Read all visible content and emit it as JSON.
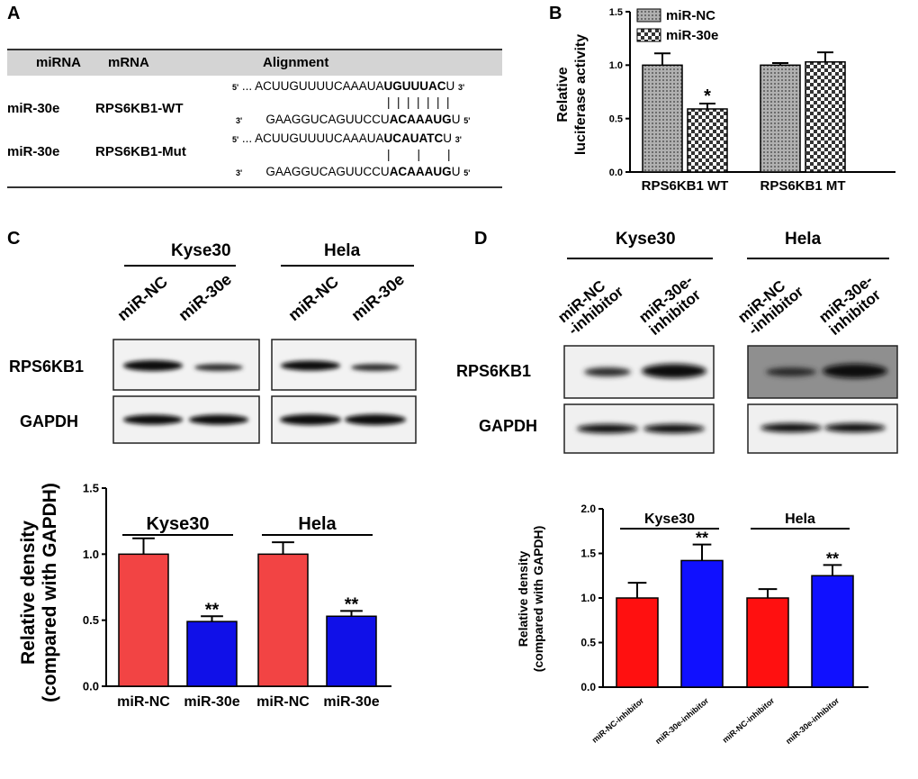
{
  "panel_labels": {
    "a": "A",
    "b": "B",
    "c": "C",
    "d": "D"
  },
  "panel_a": {
    "headers": {
      "mirna": "miRNA",
      "mrna": "mRNA",
      "alignment": "Alignment"
    },
    "rows": [
      {
        "mirna": "miR-30e",
        "mrna": "RPS6KB1-WT",
        "top_prefix": "... ACUUGUUUUCAAAUA",
        "top_bold": "UGUUUAC",
        "top_suffix": "U",
        "pairs": "|  |  |  |  |  |  |",
        "bottom_prefix": "GAAGGUCAGUUCCU",
        "bottom_bold": "ACAAAUG",
        "bottom_suffix": "U"
      },
      {
        "mirna": "miR-30e",
        "mrna": "RPS6KB1-Mut",
        "top_prefix": "... ACUUGUUUUCAAAUA",
        "top_bold": "UCAUATC",
        "top_suffix": "U",
        "pairs": "|        |        |",
        "bottom_prefix": "GAAGGUCAGUUCCU",
        "bottom_bold": "ACAAAUG",
        "bottom_suffix": "U"
      }
    ],
    "end5": "5'",
    "end3": "3'"
  },
  "panel_c_blot": {
    "groups": [
      "Kyse30",
      "Hela"
    ],
    "lanes": [
      "miR-NC",
      "miR-30e",
      "miR-NC",
      "miR-30e"
    ],
    "rows": [
      "RPS6KB1",
      "GAPDH"
    ]
  },
  "panel_d_blot": {
    "groups": [
      "Kyse30",
      "Hela"
    ],
    "lanes": [
      "miR-NC\n-inhibitor",
      "miR-30e-\ninhibitor",
      "miR-NC\n-inhibitor",
      "miR-30e-\ninhibitor"
    ],
    "rows": [
      "RPS6KB1",
      "GAPDH"
    ]
  },
  "chart_data": [
    {
      "id": "B",
      "type": "bar",
      "categories": [
        "RPS6KB1 WT",
        "RPS6KB1 MT"
      ],
      "series": [
        {
          "name": "miR-NC",
          "values": [
            1.0,
            1.0
          ],
          "errors": [
            0.11,
            0.02
          ],
          "color": "#9a9a9a"
        },
        {
          "name": "miR-30e",
          "values": [
            0.59,
            1.03
          ],
          "errors": [
            0.05,
            0.09
          ],
          "color": "#cfcfcf"
        }
      ],
      "annotations": [
        {
          "category": "RPS6KB1 WT",
          "series": "miR-30e",
          "text": "*"
        }
      ],
      "ylabel": "Relative\nluciferase activity",
      "ylim": [
        0,
        1.5
      ],
      "yticks": [
        "0.0",
        "0.5",
        "1.0",
        "1.5"
      ],
      "legend": "top-left"
    },
    {
      "id": "C",
      "type": "bar",
      "categories": [
        "miR-NC",
        "miR-30e",
        "miR-NC",
        "miR-30e"
      ],
      "values": [
        1.0,
        0.49,
        1.0,
        0.53
      ],
      "errors": [
        0.12,
        0.04,
        0.09,
        0.04
      ],
      "colors": [
        "#f24444",
        "#1010e8",
        "#f24444",
        "#1010e8"
      ],
      "groups": [
        {
          "label": "Kyse30",
          "span": [
            0,
            1
          ]
        },
        {
          "label": "Hela",
          "span": [
            2,
            3
          ]
        }
      ],
      "annotations": [
        {
          "index": 1,
          "text": "**"
        },
        {
          "index": 3,
          "text": "**"
        }
      ],
      "ylabel": "Relative density\n(compared with GAPDH)",
      "ylim": [
        0,
        1.5
      ],
      "yticks": [
        "0.0",
        "0.5",
        "1.0",
        "1.5"
      ]
    },
    {
      "id": "D",
      "type": "bar",
      "categories": [
        "miR-NC-inhibitor",
        "miR-30e-inhibitor",
        "miR-NC-inhibitor",
        "miR-30e-inhibitor"
      ],
      "values": [
        1.0,
        1.42,
        1.0,
        1.25
      ],
      "errors": [
        0.17,
        0.18,
        0.1,
        0.12
      ],
      "colors": [
        "#ff1010",
        "#1010ff",
        "#ff1010",
        "#1010ff"
      ],
      "groups": [
        {
          "label": "Kyse30",
          "span": [
            0,
            1
          ]
        },
        {
          "label": "Hela",
          "span": [
            2,
            3
          ]
        }
      ],
      "annotations": [
        {
          "index": 1,
          "text": "**"
        },
        {
          "index": 3,
          "text": "**"
        }
      ],
      "ylabel": "Relative density\n(compared with GAPDH)",
      "ylim": [
        0,
        2.0
      ],
      "yticks": [
        "0.0",
        "0.5",
        "1.0",
        "1.5",
        "2.0"
      ]
    }
  ]
}
